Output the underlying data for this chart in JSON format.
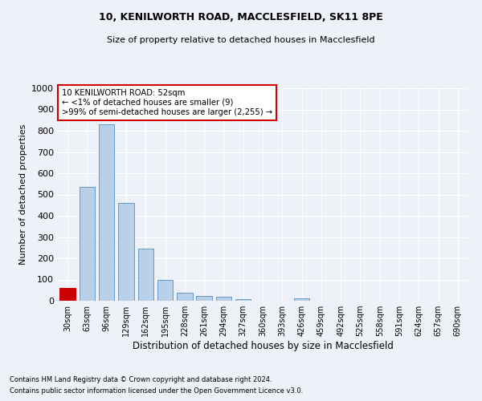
{
  "title1": "10, KENILWORTH ROAD, MACCLESFIELD, SK11 8PE",
  "title2": "Size of property relative to detached houses in Macclesfield",
  "xlabel": "Distribution of detached houses by size in Macclesfield",
  "ylabel": "Number of detached properties",
  "categories": [
    "30sqm",
    "63sqm",
    "96sqm",
    "129sqm",
    "162sqm",
    "195sqm",
    "228sqm",
    "261sqm",
    "294sqm",
    "327sqm",
    "360sqm",
    "393sqm",
    "426sqm",
    "459sqm",
    "492sqm",
    "525sqm",
    "558sqm",
    "591sqm",
    "624sqm",
    "657sqm",
    "690sqm"
  ],
  "values": [
    60,
    535,
    830,
    460,
    245,
    97,
    38,
    22,
    18,
    8,
    0,
    0,
    12,
    0,
    0,
    0,
    0,
    0,
    0,
    0,
    0
  ],
  "bar_color": "#b8d0e8",
  "bar_edge_color": "#6699cc",
  "highlight_color": "#cc0000",
  "ylim": [
    0,
    1000
  ],
  "yticks": [
    0,
    100,
    200,
    300,
    400,
    500,
    600,
    700,
    800,
    900,
    1000
  ],
  "bg_color": "#eef2f8",
  "grid_color": "#ffffff",
  "annotation_text": "10 KENILWORTH ROAD: 52sqm\n← <1% of detached houses are smaller (9)\n>99% of semi-detached houses are larger (2,255) →",
  "annotation_box_color": "#ffffff",
  "annotation_box_edge": "#cc0000",
  "footnote1": "Contains HM Land Registry data © Crown copyright and database right 2024.",
  "footnote2": "Contains public sector information licensed under the Open Government Licence v3.0."
}
